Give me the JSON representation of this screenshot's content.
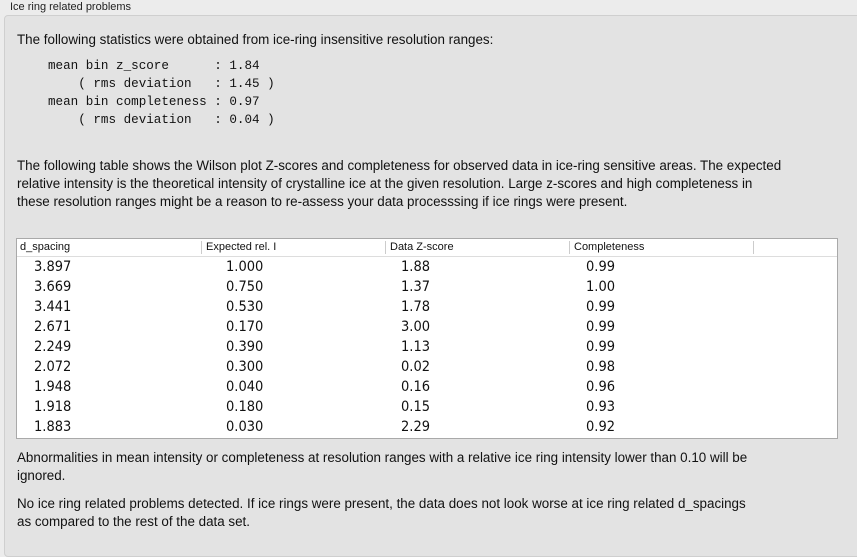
{
  "group_title": "Ice ring related problems",
  "intro": "The following statistics were obtained from ice-ring insensitive resolution ranges:",
  "stats": "mean bin z_score      : 1.84\n    ( rms deviation   : 1.45 )\nmean bin completeness : 0.97\n    ( rms deviation   : 0.04 )",
  "desc": "The following table shows the Wilson plot Z-scores and completeness for observed data in ice-ring sensitive areas. The expected relative intensity is the theoretical intensity of crystalline ice at the given resolution. Large z-scores and high completeness in these resolution ranges might be a reason to re-assess your data processsing if ice rings were present.",
  "table": {
    "columns": [
      "d_spacing",
      "Expected rel. I",
      "Data Z-score",
      "Completeness"
    ],
    "rows": [
      [
        "3.897",
        "1.000",
        "1.88",
        "0.99"
      ],
      [
        "3.669",
        "0.750",
        "1.37",
        "1.00"
      ],
      [
        "3.441",
        "0.530",
        "1.78",
        "0.99"
      ],
      [
        "2.671",
        "0.170",
        "3.00",
        "0.99"
      ],
      [
        "2.249",
        "0.390",
        "1.13",
        "0.99"
      ],
      [
        "2.072",
        "0.300",
        "0.02",
        "0.98"
      ],
      [
        "1.948",
        "0.040",
        "0.16",
        "0.96"
      ],
      [
        "1.918",
        "0.180",
        "0.15",
        "0.93"
      ],
      [
        "1.883",
        "0.030",
        "2.29",
        "0.92"
      ]
    ]
  },
  "note1": "Abnormalities in mean intensity or completeness at resolution ranges with a relative ice ring intensity lower than 0.10 will be ignored.",
  "note2": "No ice ring related problems detected. If ice rings were present, the data does not look worse at ice ring related d_spacings as compared to the rest of the data set."
}
